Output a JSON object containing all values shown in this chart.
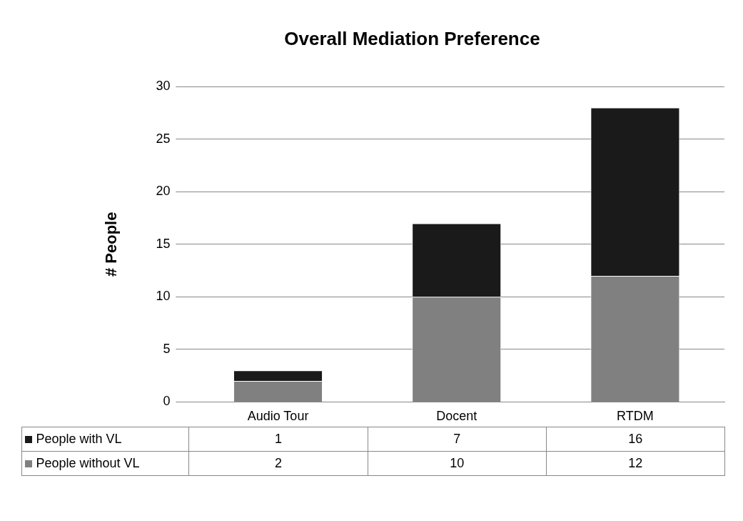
{
  "chart_data": {
    "type": "bar",
    "title": "Overall Mediation Preference",
    "ylabel": "# People",
    "categories": [
      "Audio Tour",
      "Docent",
      "RTDM"
    ],
    "series": [
      {
        "name": "People without VL",
        "color": "#808080",
        "values": [
          2,
          10,
          12
        ]
      },
      {
        "name": "People with VL",
        "color": "#1a1a1a",
        "values": [
          1,
          7,
          16
        ]
      }
    ],
    "stacked": true,
    "ylim": [
      0,
      30
    ],
    "yticks": [
      0,
      5,
      10,
      15,
      20,
      25,
      30
    ],
    "grid": "y",
    "legend": "bottom",
    "data_labels": true
  }
}
